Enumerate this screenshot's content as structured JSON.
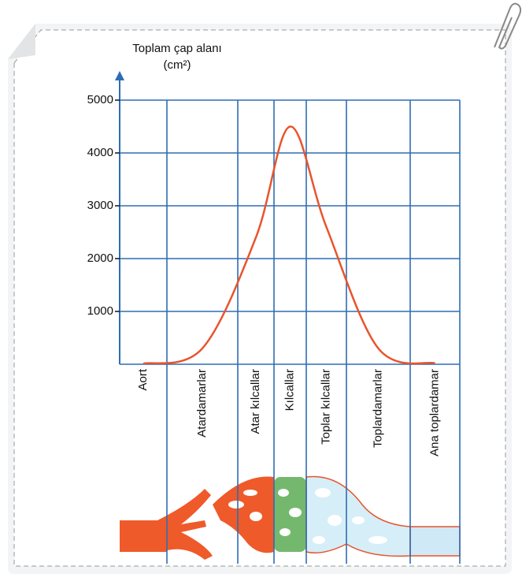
{
  "chart_data": {
    "type": "line",
    "y_label": "Toplam çap alanı",
    "y_unit": "(cm²)",
    "categories": [
      "Aort",
      "Atardamarlar",
      "Atar kılcallar",
      "Kılcallar",
      "Toplar kılcallar",
      "Toplardamarlar",
      "Ana toplardamar"
    ],
    "series": [
      {
        "name": "Toplam çap alanı",
        "color": "#e8542c",
        "values": [
          10,
          300,
          2400,
          4500,
          2600,
          300,
          20
        ]
      }
    ],
    "ylim": [
      0,
      5000
    ],
    "yticks": [
      1000,
      2000,
      3000,
      4000,
      5000
    ],
    "grid": true,
    "grid_color": "#2f6db3"
  }
}
